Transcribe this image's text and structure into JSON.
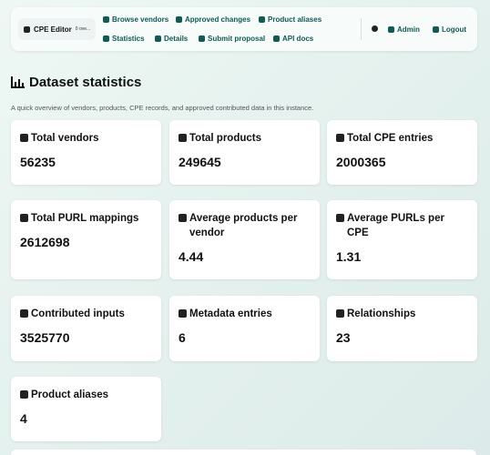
{
  "nav": {
    "brand": "CPE Editor",
    "version": "0 ove...",
    "links_top": [
      "Browse vendors",
      "Approved changes",
      "Product aliases"
    ],
    "links_bottom": [
      "Statistics",
      "Details",
      "Submit proposal",
      "API docs"
    ],
    "user": "Admin",
    "logout": "Logout"
  },
  "page": {
    "title": "Dataset statistics",
    "subtitle": "A quick overview of vendors, products, CPE records, and approved contributed data in this instance."
  },
  "stats": [
    {
      "label": "Total vendors",
      "value": 56235
    },
    {
      "label": "Total products",
      "value": 249645
    },
    {
      "label": "Total CPE entries",
      "value": 2000365
    },
    {
      "label": "Total PURL mappings",
      "value": 2612698
    },
    {
      "label": "Average products per vendor",
      "value": 4.44
    },
    {
      "label": "Average PURLs per CPE",
      "value": 1.31
    },
    {
      "label": "Contributed inputs",
      "value": 3525770
    },
    {
      "label": "Metadata entries",
      "value": 6
    },
    {
      "label": "Relationships",
      "value": 23
    },
    {
      "label": "Product aliases",
      "value": 4
    }
  ]
}
